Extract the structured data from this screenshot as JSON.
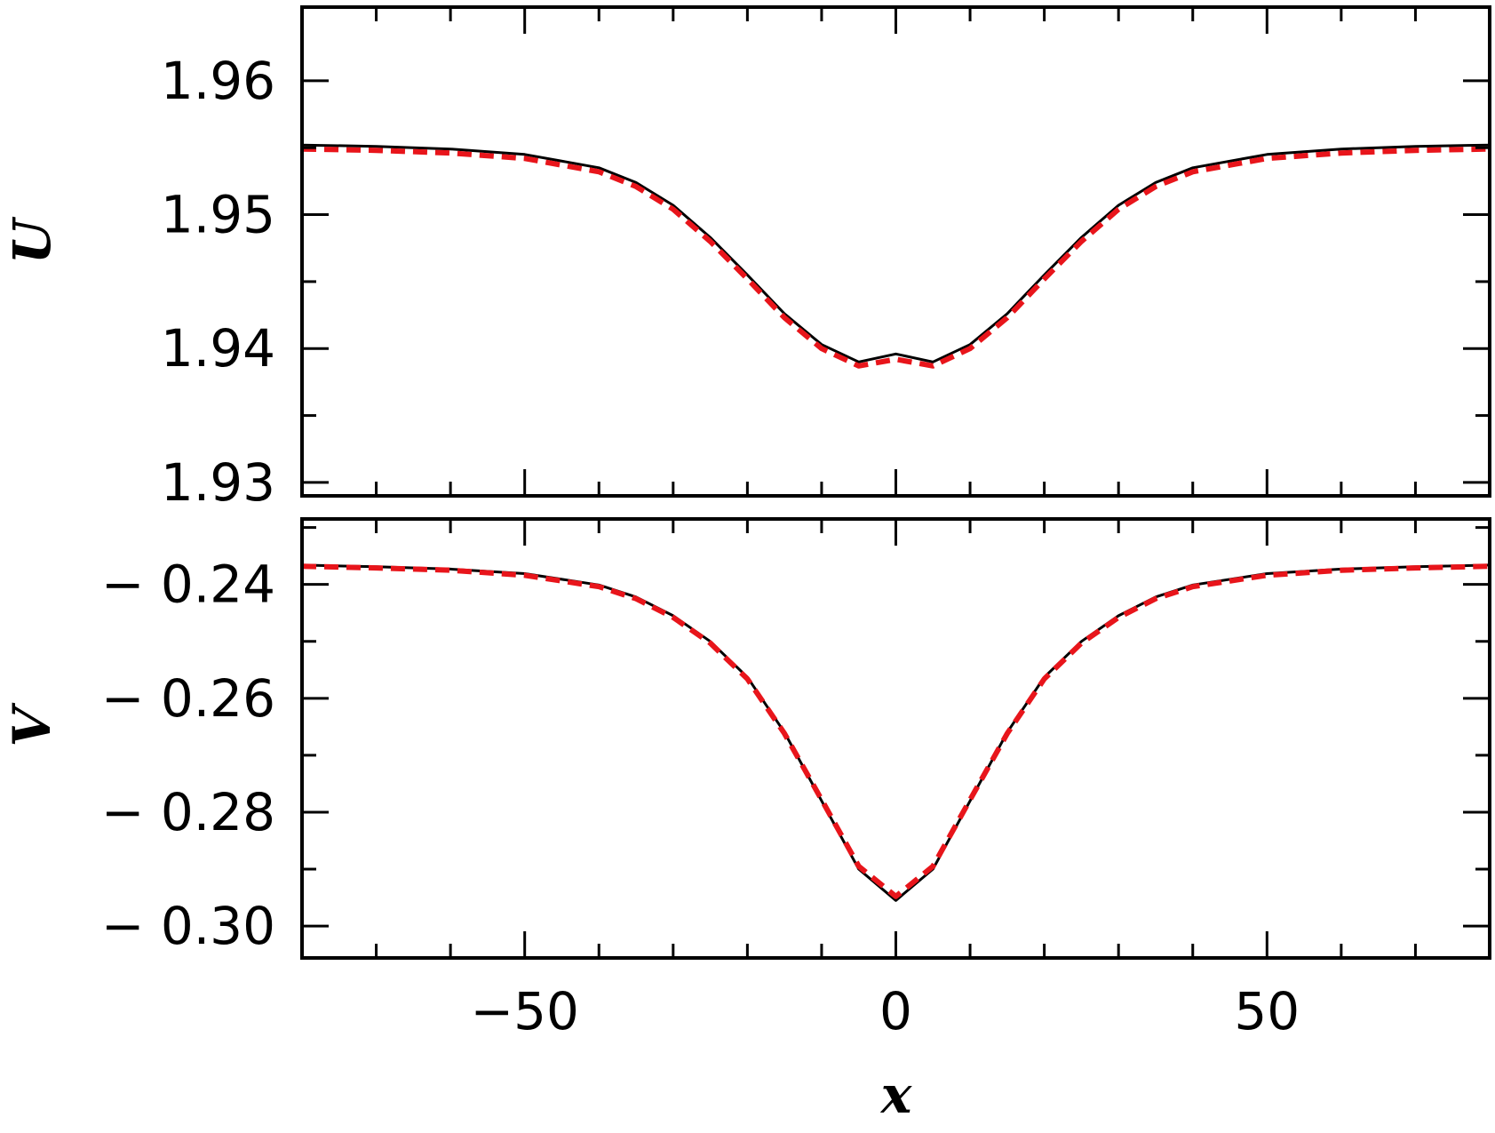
{
  "colors": {
    "reference": "#000000",
    "approximation": "#e8151b"
  },
  "chart_data": [
    {
      "type": "line",
      "panel": "top",
      "xlabel": "",
      "ylabel": "U",
      "xlim": [
        -80,
        80
      ],
      "ylim": [
        1.929,
        1.9655
      ],
      "yticks": [
        1.93,
        1.94,
        1.95,
        1.96
      ],
      "ytick_labels": [
        "1.93",
        "1.94",
        "1.95",
        "1.96"
      ],
      "grid": false,
      "series": [
        {
          "style": "solid",
          "color": "#000000",
          "x": [
            -80,
            -70,
            -60,
            -50,
            -40,
            -35,
            -30,
            -25,
            -20,
            -15,
            -10,
            -5,
            0,
            5,
            10,
            15,
            20,
            25,
            30,
            35,
            40,
            50,
            60,
            70,
            80
          ],
          "y": [
            1.9552,
            1.9551,
            1.9549,
            1.9545,
            1.9535,
            1.9524,
            1.9507,
            1.9483,
            1.9455,
            1.9426,
            1.9403,
            1.939,
            1.9396,
            1.939,
            1.9403,
            1.9426,
            1.9455,
            1.9483,
            1.9507,
            1.9524,
            1.9535,
            1.9545,
            1.9549,
            1.9551,
            1.9552
          ]
        },
        {
          "style": "dashed",
          "color": "#e8151b",
          "x": [
            -80,
            -70,
            -60,
            -50,
            -40,
            -35,
            -30,
            -25,
            -20,
            -15,
            -10,
            -5,
            0,
            5,
            10,
            15,
            20,
            25,
            30,
            35,
            40,
            50,
            60,
            70,
            80
          ],
          "y": [
            1.9549,
            1.9548,
            1.9546,
            1.9542,
            1.9532,
            1.9521,
            1.9504,
            1.948,
            1.9452,
            1.9423,
            1.94,
            1.9387,
            1.9392,
            1.9387,
            1.94,
            1.9423,
            1.9452,
            1.948,
            1.9504,
            1.9521,
            1.9532,
            1.9542,
            1.9546,
            1.9548,
            1.9549
          ]
        }
      ]
    },
    {
      "type": "line",
      "panel": "bottom",
      "xlabel": "x",
      "ylabel": "V",
      "xlim": [
        -80,
        80
      ],
      "ylim": [
        -0.3056,
        -0.2285
      ],
      "xticks": [
        -50,
        0,
        50
      ],
      "xtick_labels": [
        "−50",
        "0",
        "50"
      ],
      "yticks": [
        -0.3,
        -0.28,
        -0.26,
        -0.24
      ],
      "ytick_labels": [
        "− 0.30",
        "− 0.28",
        "− 0.26",
        "− 0.24"
      ],
      "grid": false,
      "series": [
        {
          "style": "solid",
          "color": "#000000",
          "x": [
            -80,
            -70,
            -60,
            -50,
            -40,
            -35,
            -30,
            -25,
            -20,
            -15,
            -10,
            -5,
            0,
            5,
            10,
            15,
            20,
            25,
            30,
            35,
            40,
            50,
            60,
            70,
            80
          ],
          "y": [
            -0.2366,
            -0.2369,
            -0.2373,
            -0.2381,
            -0.2401,
            -0.2422,
            -0.2455,
            -0.25,
            -0.2563,
            -0.266,
            -0.278,
            -0.29,
            -0.2955,
            -0.29,
            -0.278,
            -0.266,
            -0.2563,
            -0.25,
            -0.2455,
            -0.2422,
            -0.2401,
            -0.2381,
            -0.2373,
            -0.2369,
            -0.2366
          ]
        },
        {
          "style": "dashed",
          "color": "#e8151b",
          "x": [
            -80,
            -70,
            -60,
            -50,
            -40,
            -35,
            -30,
            -25,
            -20,
            -15,
            -10,
            -5,
            0,
            5,
            10,
            15,
            20,
            25,
            30,
            35,
            40,
            50,
            60,
            70,
            80
          ],
          "y": [
            -0.2368,
            -0.2371,
            -0.2375,
            -0.2384,
            -0.2404,
            -0.2425,
            -0.2458,
            -0.2503,
            -0.2566,
            -0.2662,
            -0.2778,
            -0.2895,
            -0.2948,
            -0.2895,
            -0.2778,
            -0.2662,
            -0.2566,
            -0.2503,
            -0.2458,
            -0.2425,
            -0.2404,
            -0.2384,
            -0.2375,
            -0.2371,
            -0.2368
          ]
        }
      ]
    }
  ]
}
